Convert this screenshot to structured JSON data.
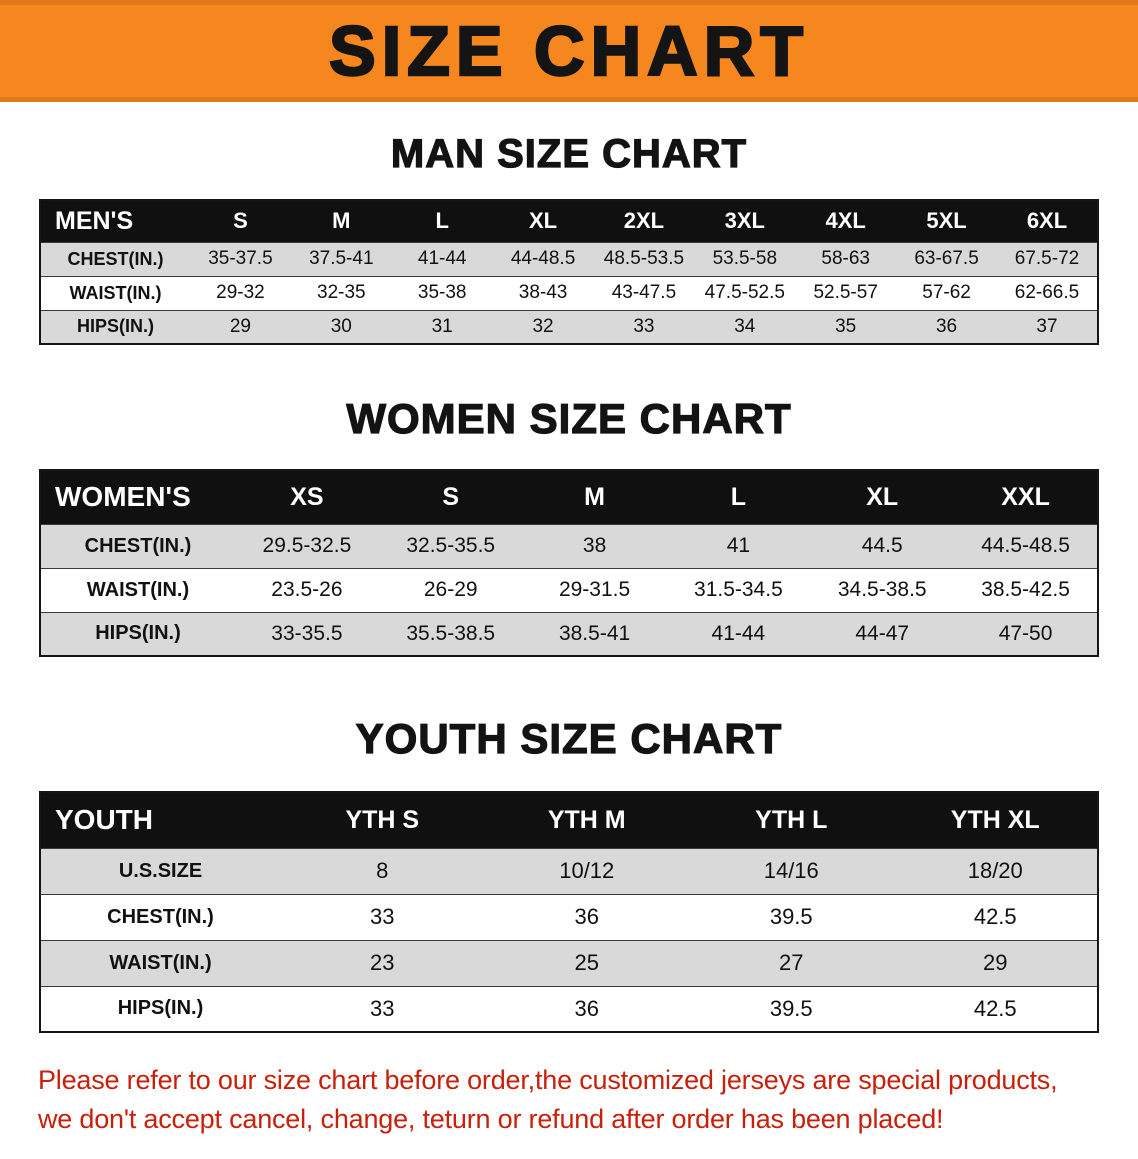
{
  "colors": {
    "banner_orange": "#F6871F",
    "header_black": "#101010",
    "row_gray": "#D9D9D9",
    "footer_red": "#C8200A"
  },
  "banner": {
    "title": "SIZE CHART"
  },
  "sections": [
    {
      "heading": "MAN SIZE CHART",
      "table_name": "men-size-table",
      "table": {
        "header": [
          "MEN'S",
          "S",
          "M",
          "L",
          "XL",
          "2XL",
          "3XL",
          "4XL",
          "5XL",
          "6XL"
        ],
        "rows": [
          [
            "CHEST(IN.)",
            "35-37.5",
            "37.5-41",
            "41-44",
            "44-48.5",
            "48.5-53.5",
            "53.5-58",
            "58-63",
            "63-67.5",
            "67.5-72"
          ],
          [
            "WAIST(IN.)",
            "29-32",
            "32-35",
            "35-38",
            "38-43",
            "43-47.5",
            "47.5-52.5",
            "52.5-57",
            "57-62",
            "62-66.5"
          ],
          [
            "HIPS(IN.)",
            "29",
            "30",
            "31",
            "32",
            "33",
            "34",
            "35",
            "36",
            "37"
          ]
        ]
      }
    },
    {
      "heading": "WOMEN SIZE CHART",
      "table_name": "women-size-table",
      "table": {
        "header": [
          "WOMEN'S",
          "XS",
          "S",
          "M",
          "L",
          "XL",
          "XXL"
        ],
        "rows": [
          [
            "CHEST(IN.)",
            "29.5-32.5",
            "32.5-35.5",
            "38",
            "41",
            "44.5",
            "44.5-48.5"
          ],
          [
            "WAIST(IN.)",
            "23.5-26",
            "26-29",
            "29-31.5",
            "31.5-34.5",
            "34.5-38.5",
            "38.5-42.5"
          ],
          [
            "HIPS(IN.)",
            "33-35.5",
            "35.5-38.5",
            "38.5-41",
            "41-44",
            "44-47",
            "47-50"
          ]
        ]
      }
    },
    {
      "heading": "YOUTH SIZE CHART",
      "table_name": "youth-size-table",
      "table": {
        "header": [
          "YOUTH",
          "YTH S",
          "YTH M",
          "YTH L",
          "YTH XL"
        ],
        "rows": [
          [
            "U.S.SIZE",
            "8",
            "10/12",
            "14/16",
            "18/20"
          ],
          [
            "CHEST(IN.)",
            "33",
            "36",
            "39.5",
            "42.5"
          ],
          [
            "WAIST(IN.)",
            "23",
            "25",
            "27",
            "29"
          ],
          [
            "HIPS(IN.)",
            "33",
            "36",
            "39.5",
            "42.5"
          ]
        ]
      }
    }
  ],
  "footer": {
    "lines": [
      "Please refer to our size chart before order,the customized jerseys are special products,",
      "we don't accept cancel, change, teturn or refund after order has been placed!"
    ]
  }
}
